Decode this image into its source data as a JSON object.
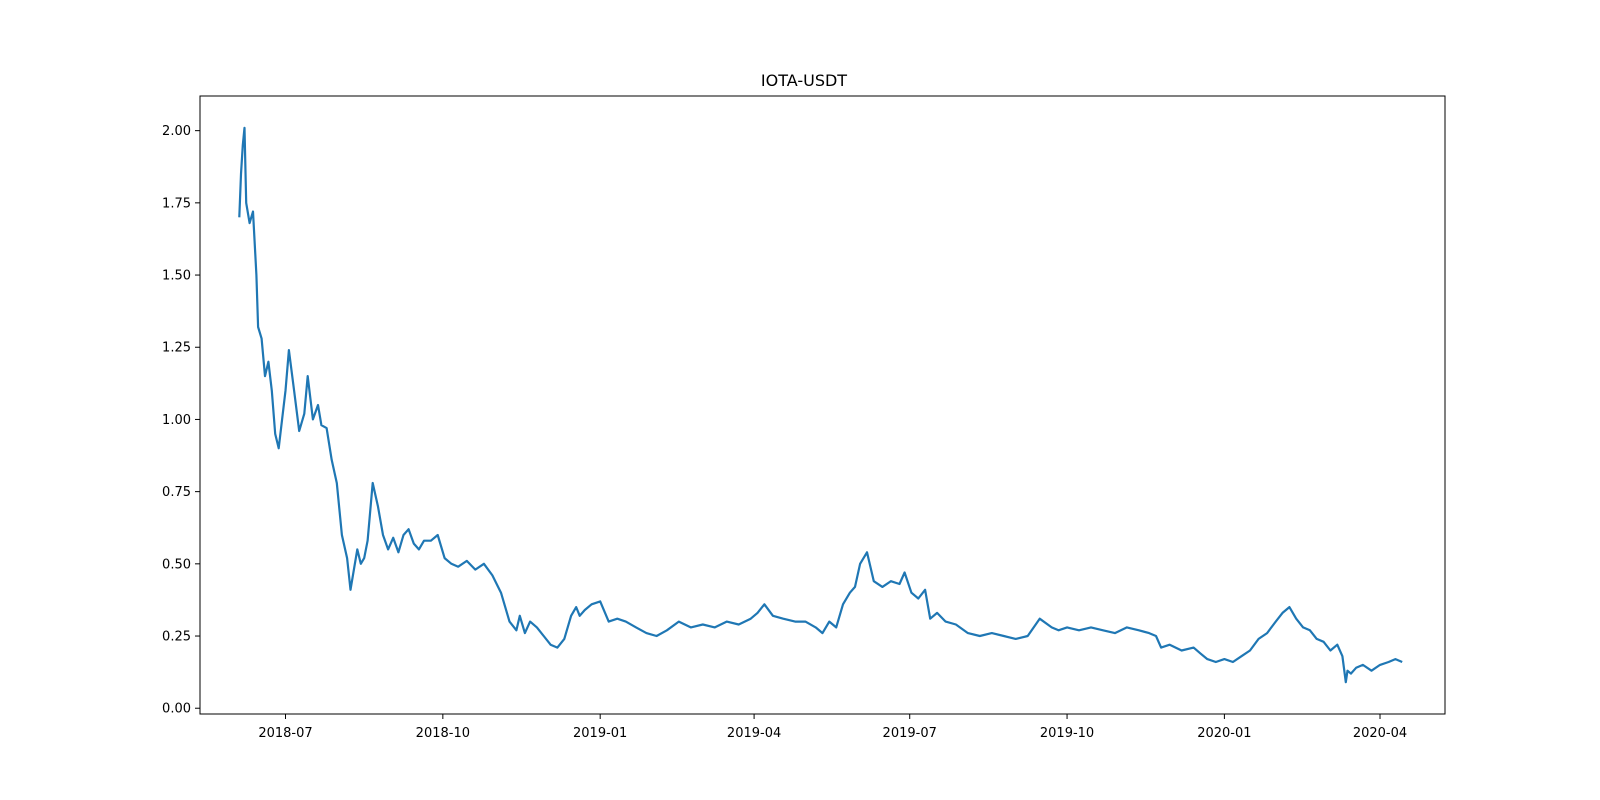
{
  "chart_data": {
    "type": "line",
    "title": "IOTA-USDT",
    "xlabel": "",
    "ylabel": "",
    "xlim": [
      "2018-05-12",
      "2020-05-09"
    ],
    "ylim": [
      -0.02,
      2.12
    ],
    "grid": false,
    "legend": "none",
    "line_color": "#1f77b4",
    "x_ticks": [
      "2018-07",
      "2018-10",
      "2019-01",
      "2019-04",
      "2019-07",
      "2019-10",
      "2020-01",
      "2020-04"
    ],
    "y_ticks": [
      "0.00",
      "0.25",
      "0.50",
      "0.75",
      "1.00",
      "1.25",
      "1.50",
      "1.75",
      "2.00"
    ],
    "series": [
      {
        "x": [
          "2018-06-04",
          "2018-06-05",
          "2018-06-06",
          "2018-06-07",
          "2018-06-08",
          "2018-06-10",
          "2018-06-12",
          "2018-06-14",
          "2018-06-15",
          "2018-06-17",
          "2018-06-19",
          "2018-06-21",
          "2018-06-23",
          "2018-06-25",
          "2018-06-27",
          "2018-06-29",
          "2018-07-01",
          "2018-07-03",
          "2018-07-06",
          "2018-07-09",
          "2018-07-12",
          "2018-07-14",
          "2018-07-17",
          "2018-07-20",
          "2018-07-22",
          "2018-07-25",
          "2018-07-28",
          "2018-07-31",
          "2018-08-03",
          "2018-08-06",
          "2018-08-08",
          "2018-08-10",
          "2018-08-12",
          "2018-08-14",
          "2018-08-16",
          "2018-08-18",
          "2018-08-21",
          "2018-08-24",
          "2018-08-27",
          "2018-08-30",
          "2018-09-02",
          "2018-09-05",
          "2018-09-08",
          "2018-09-11",
          "2018-09-14",
          "2018-09-17",
          "2018-09-20",
          "2018-09-24",
          "2018-09-28",
          "2018-10-02",
          "2018-10-06",
          "2018-10-10",
          "2018-10-15",
          "2018-10-20",
          "2018-10-25",
          "2018-10-30",
          "2018-11-04",
          "2018-11-09",
          "2018-11-13",
          "2018-11-15",
          "2018-11-18",
          "2018-11-21",
          "2018-11-25",
          "2018-11-29",
          "2018-12-03",
          "2018-12-07",
          "2018-12-11",
          "2018-12-15",
          "2018-12-18",
          "2018-12-20",
          "2018-12-23",
          "2018-12-27",
          "2019-01-01",
          "2019-01-06",
          "2019-01-11",
          "2019-01-16",
          "2019-01-22",
          "2019-01-28",
          "2019-02-03",
          "2019-02-09",
          "2019-02-16",
          "2019-02-23",
          "2019-03-02",
          "2019-03-09",
          "2019-03-16",
          "2019-03-23",
          "2019-03-30",
          "2019-04-03",
          "2019-04-07",
          "2019-04-12",
          "2019-04-18",
          "2019-04-25",
          "2019-05-01",
          "2019-05-07",
          "2019-05-11",
          "2019-05-15",
          "2019-05-19",
          "2019-05-23",
          "2019-05-27",
          "2019-05-30",
          "2019-06-02",
          "2019-06-06",
          "2019-06-10",
          "2019-06-15",
          "2019-06-20",
          "2019-06-25",
          "2019-06-28",
          "2019-07-02",
          "2019-07-06",
          "2019-07-10",
          "2019-07-13",
          "2019-07-17",
          "2019-07-22",
          "2019-07-28",
          "2019-08-04",
          "2019-08-11",
          "2019-08-18",
          "2019-08-25",
          "2019-09-01",
          "2019-09-08",
          "2019-09-15",
          "2019-09-22",
          "2019-09-26",
          "2019-10-01",
          "2019-10-08",
          "2019-10-15",
          "2019-10-22",
          "2019-10-29",
          "2019-11-05",
          "2019-11-12",
          "2019-11-18",
          "2019-11-22",
          "2019-11-25",
          "2019-11-30",
          "2019-12-07",
          "2019-12-14",
          "2019-12-18",
          "2019-12-22",
          "2019-12-27",
          "2020-01-01",
          "2020-01-06",
          "2020-01-11",
          "2020-01-16",
          "2020-01-21",
          "2020-01-26",
          "2020-01-31",
          "2020-02-04",
          "2020-02-08",
          "2020-02-12",
          "2020-02-16",
          "2020-02-20",
          "2020-02-24",
          "2020-02-28",
          "2020-03-03",
          "2020-03-07",
          "2020-03-10",
          "2020-03-12",
          "2020-03-13",
          "2020-03-15",
          "2020-03-18",
          "2020-03-22",
          "2020-03-27",
          "2020-04-01",
          "2020-04-06",
          "2020-04-10",
          "2020-04-14"
        ],
        "y": [
          1.7,
          1.85,
          1.95,
          2.01,
          1.75,
          1.68,
          1.72,
          1.5,
          1.32,
          1.28,
          1.15,
          1.2,
          1.1,
          0.95,
          0.9,
          1.0,
          1.1,
          1.24,
          1.1,
          0.96,
          1.02,
          1.15,
          1.0,
          1.05,
          0.98,
          0.97,
          0.86,
          0.78,
          0.6,
          0.52,
          0.41,
          0.48,
          0.55,
          0.5,
          0.52,
          0.58,
          0.78,
          0.7,
          0.6,
          0.55,
          0.59,
          0.54,
          0.6,
          0.62,
          0.57,
          0.55,
          0.58,
          0.58,
          0.6,
          0.52,
          0.5,
          0.49,
          0.51,
          0.48,
          0.5,
          0.46,
          0.4,
          0.3,
          0.27,
          0.32,
          0.26,
          0.3,
          0.28,
          0.25,
          0.22,
          0.21,
          0.24,
          0.32,
          0.35,
          0.32,
          0.34,
          0.36,
          0.37,
          0.3,
          0.31,
          0.3,
          0.28,
          0.26,
          0.25,
          0.27,
          0.3,
          0.28,
          0.29,
          0.28,
          0.3,
          0.29,
          0.31,
          0.33,
          0.36,
          0.32,
          0.31,
          0.3,
          0.3,
          0.28,
          0.26,
          0.3,
          0.28,
          0.36,
          0.4,
          0.42,
          0.5,
          0.54,
          0.44,
          0.42,
          0.44,
          0.43,
          0.47,
          0.4,
          0.38,
          0.41,
          0.31,
          0.33,
          0.3,
          0.29,
          0.26,
          0.25,
          0.26,
          0.25,
          0.24,
          0.25,
          0.31,
          0.28,
          0.27,
          0.28,
          0.27,
          0.28,
          0.27,
          0.26,
          0.28,
          0.27,
          0.26,
          0.25,
          0.21,
          0.22,
          0.2,
          0.21,
          0.19,
          0.17,
          0.16,
          0.17,
          0.16,
          0.18,
          0.2,
          0.24,
          0.26,
          0.3,
          0.33,
          0.35,
          0.31,
          0.28,
          0.27,
          0.24,
          0.23,
          0.2,
          0.22,
          0.18,
          0.09,
          0.13,
          0.12,
          0.14,
          0.15,
          0.13,
          0.15,
          0.16,
          0.17,
          0.16
        ]
      }
    ]
  }
}
